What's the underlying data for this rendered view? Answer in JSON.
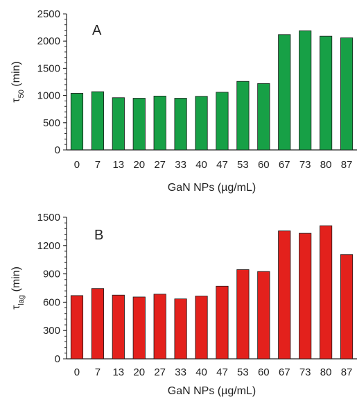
{
  "colors": {
    "panel_A_bar": "#17a046",
    "panel_B_bar": "#e3211c",
    "axis": "#222222"
  },
  "chart_data": [
    {
      "type": "bar",
      "panel_label": "A",
      "categories": [
        "0",
        "7",
        "13",
        "20",
        "27",
        "33",
        "40",
        "47",
        "53",
        "60",
        "67",
        "73",
        "80",
        "87"
      ],
      "values": [
        1040,
        1070,
        960,
        950,
        990,
        950,
        985,
        1060,
        1260,
        1220,
        2120,
        2190,
        2090,
        2060
      ],
      "xlabel": "GaN NPs (µg/mL)",
      "ylabel_symbol": "τ",
      "ylabel_sub": "50",
      "ylabel_unit": " (min)",
      "ylim": [
        0,
        2500
      ],
      "yticks": [
        "0",
        "500",
        "1000",
        "1500",
        "2000",
        "2500"
      ],
      "grid": false,
      "color": "#17a046"
    },
    {
      "type": "bar",
      "panel_label": "B",
      "categories": [
        "0",
        "7",
        "13",
        "20",
        "27",
        "33",
        "40",
        "47",
        "53",
        "60",
        "67",
        "73",
        "80",
        "87"
      ],
      "values": [
        670,
        745,
        675,
        655,
        685,
        635,
        665,
        770,
        945,
        925,
        1355,
        1330,
        1410,
        1105
      ],
      "xlabel": "GaN NPs (µg/mL)",
      "ylabel_symbol": "τ",
      "ylabel_sub": "lag",
      "ylabel_unit": " (min)",
      "ylim": [
        0,
        1500
      ],
      "yticks": [
        "0",
        "300",
        "600",
        "900",
        "1200",
        "1500"
      ],
      "grid": false,
      "color": "#e3211c"
    }
  ]
}
